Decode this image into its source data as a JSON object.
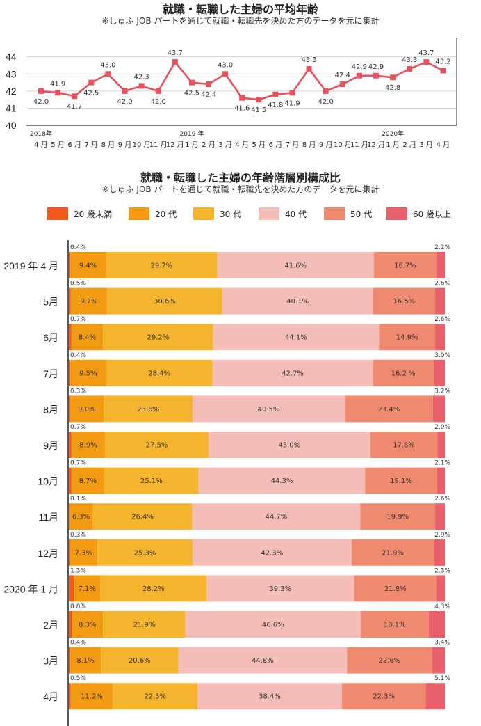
{
  "chart_data": [
    {
      "type": "line",
      "title": "就職・転職した主婦の平均年齢",
      "subtitle": "※しゅふ JOB パートを通じて就職・転職先を決めた方のデータを元に集計",
      "year_labels": [
        {
          "label": "2018年",
          "index": 0
        },
        {
          "label": "2019 年",
          "index": 9
        },
        {
          "label": "2020年",
          "index": 21
        }
      ],
      "x": [
        "4 月",
        "5 月",
        "6 月",
        "7 月",
        "8 月",
        "9 月",
        "10 月",
        "11 月",
        "12 月",
        "1 月",
        "2 月",
        "3 月",
        "4 月",
        "5 月",
        "6 月",
        "7 月",
        "8 月",
        "9 月",
        "10 月",
        "11 月",
        "12 月",
        "1 月",
        "2 月",
        "3 月",
        "4 月"
      ],
      "values": [
        42.0,
        41.9,
        41.7,
        42.5,
        43.0,
        42.0,
        42.3,
        42.0,
        43.7,
        42.5,
        42.4,
        43.0,
        41.6,
        41.5,
        41.8,
        41.9,
        43.3,
        42.0,
        42.4,
        42.9,
        42.9,
        42.8,
        43.3,
        43.7,
        43.2
      ],
      "data_labels": [
        "42.0",
        "41.9",
        "41.7",
        "42.5",
        "43.0",
        "42.0",
        "42.3",
        "42.0",
        "43.7",
        "42.5",
        "42.4",
        "43.0",
        "41.6",
        "41.5",
        "41.8",
        "41.9",
        "43.3",
        "42.0",
        "42.4",
        "42.9",
        "42.9",
        "42.8",
        "43.3",
        "43.7",
        "43.2"
      ],
      "label_position": [
        "below",
        "above",
        "below",
        "below",
        "above",
        "below",
        "above",
        "below",
        "above",
        "below",
        "below",
        "above",
        "below",
        "below",
        "below",
        "below",
        "above",
        "below",
        "above",
        "above",
        "above",
        "below",
        "above",
        "above",
        "above"
      ],
      "yticks": [
        "40",
        "41",
        "42",
        "43",
        "44"
      ],
      "ylim": [
        40,
        44.6
      ],
      "grid": true,
      "color": "#e8505b"
    },
    {
      "type": "bar",
      "orientation": "horizontal",
      "stacked": true,
      "title": "就職・転職した主婦の年齢階層別構成比",
      "subtitle": "※しゅふ JOB パートを通じて就職・転職先を決めた方のデータを元に集計",
      "legend_position": "top",
      "categories": [
        "2019 年 4 月",
        "5月",
        "6月",
        "7月",
        "8月",
        "9月",
        "10月",
        "11月",
        "12月",
        "2020 年 1 月",
        "2月",
        "3月",
        "4月"
      ],
      "series": [
        {
          "name": "20 歳未満",
          "color": "#f15a1f",
          "values": [
            0.4,
            0.5,
            0.7,
            0.4,
            0.3,
            0.7,
            0.7,
            0.1,
            0.3,
            1.3,
            0.8,
            0.4,
            0.5
          ],
          "labels": [
            "0.4%",
            "0.5%",
            "0.7%",
            "0.4%",
            "0.3%",
            "0.7%",
            "0.7%",
            "0.1%",
            "0.3%",
            "1.3%",
            "0.8%",
            "0.4%",
            "0.5%"
          ]
        },
        {
          "name": "20 代",
          "color": "#f29b12",
          "values": [
            9.4,
            9.7,
            8.4,
            9.5,
            9.0,
            8.9,
            8.7,
            6.3,
            7.3,
            7.1,
            8.3,
            8.1,
            11.2
          ],
          "labels": [
            "9.4%",
            "9.7%",
            "8.4%",
            "9.5%",
            "9.0%",
            "8.9%",
            "8.7%",
            "6.3%",
            "7.3%",
            "7.1%",
            "8.3%",
            "8.1%",
            "11.2%"
          ]
        },
        {
          "name": "30 代",
          "color": "#f5b42e",
          "values": [
            29.7,
            30.6,
            29.2,
            28.4,
            23.6,
            27.5,
            25.1,
            26.4,
            25.3,
            28.2,
            21.9,
            20.6,
            22.5
          ],
          "labels": [
            "29.7%",
            "30.6%",
            "29.2%",
            "28.4%",
            "23.6%",
            "27.5%",
            "25.1%",
            "26.4%",
            "25.3%",
            "28.2%",
            "21.9%",
            "20.6%",
            "22.5%"
          ]
        },
        {
          "name": "40 代",
          "color": "#f5bdb8",
          "values": [
            41.6,
            40.1,
            44.1,
            42.7,
            40.5,
            43.0,
            44.3,
            44.7,
            42.3,
            39.3,
            46.6,
            44.8,
            38.4
          ],
          "labels": [
            "41.6%",
            "40.1%",
            "44.1%",
            "42.7%",
            "40.5%",
            "43.0%",
            "44.3%",
            "44.7%",
            "42.3%",
            "39.3%",
            "46.6%",
            "44.8%",
            "38.4%"
          ]
        },
        {
          "name": "50 代",
          "color": "#ef8a70",
          "values": [
            16.7,
            16.5,
            14.9,
            16.2,
            23.4,
            17.8,
            19.1,
            19.9,
            21.9,
            21.8,
            18.1,
            22.6,
            22.3
          ],
          "labels": [
            "16.7%",
            "16.5%",
            "14.9%",
            "16.2 %",
            "23.4%",
            "17.8%",
            "19.1%",
            "19.9%",
            "21.9%",
            "21.8%",
            "18.1%",
            "22.6%",
            "22.3%"
          ]
        },
        {
          "name": "60 歳以上",
          "color": "#e9606a",
          "values": [
            2.2,
            2.6,
            2.6,
            3.0,
            3.2,
            2.0,
            2.1,
            2.6,
            2.9,
            2.3,
            4.3,
            3.4,
            5.1
          ],
          "labels": [
            "2.2%",
            "2.6%",
            "2.6%",
            "3.0%",
            "3.2%",
            "2.0%",
            "2.1%",
            "2.6%",
            "2.9%",
            "2.3%",
            "4.3%",
            "3.4%",
            "5.1%"
          ]
        }
      ]
    }
  ]
}
